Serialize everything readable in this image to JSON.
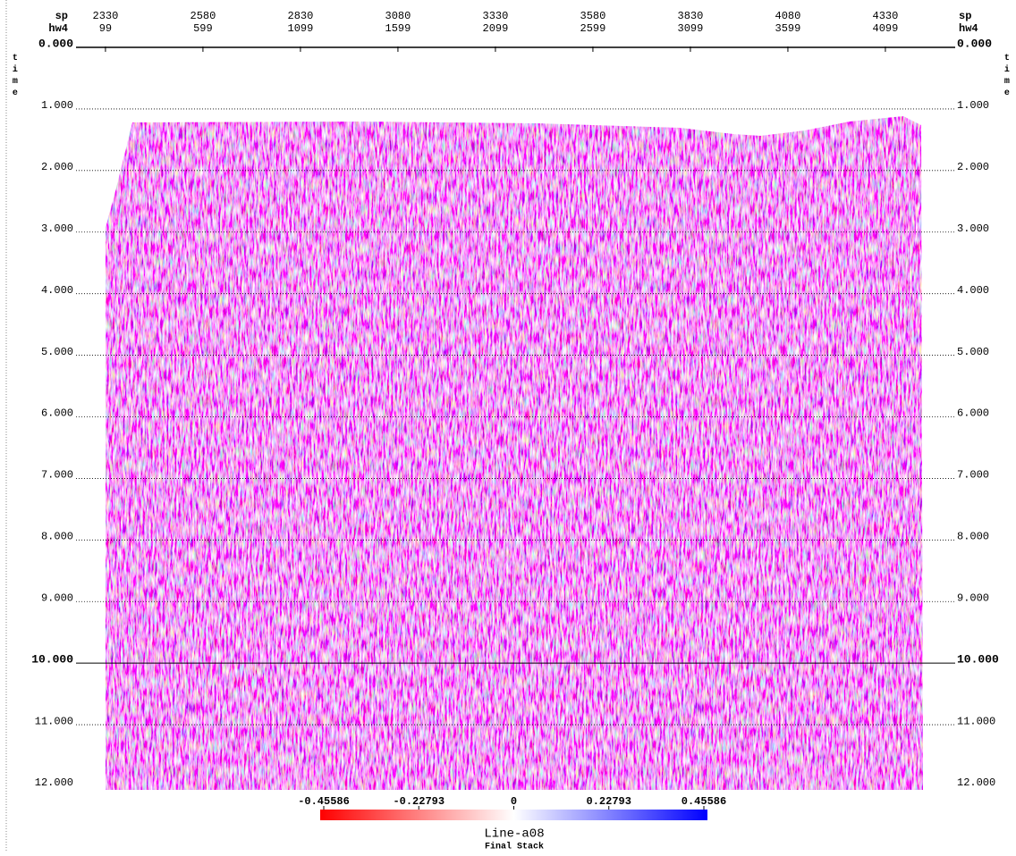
{
  "chart_data": {
    "type": "seismic",
    "title": "Line-a08",
    "subtitle": "Final Stack",
    "ylabel": "time",
    "x_axis_names": [
      "sp",
      "hw4"
    ],
    "xlim": [
      -52,
      4457
    ],
    "xticks": [
      99,
      599,
      1099,
      1599,
      2099,
      2599,
      3099,
      3599,
      4099
    ],
    "sp_ticks": [
      2330,
      2580,
      2830,
      3080,
      3330,
      3580,
      3830,
      4080,
      4330
    ],
    "ylim": [
      0,
      12
    ],
    "yticks": [
      {
        "value": 0,
        "label": "0.000"
      },
      {
        "value": 1,
        "label": "1.000"
      },
      {
        "value": 2,
        "label": "2.000"
      },
      {
        "value": 3,
        "label": "3.000"
      },
      {
        "value": 4,
        "label": "4.000"
      },
      {
        "value": 5,
        "label": "5.000"
      },
      {
        "value": 6,
        "label": "6.000"
      },
      {
        "value": 7,
        "label": "7.000"
      },
      {
        "value": 8,
        "label": "8.000"
      },
      {
        "value": 9,
        "label": "9.000"
      },
      {
        "value": 10,
        "label": "10.000"
      },
      {
        "value": 11,
        "label": "11.000"
      },
      {
        "value": 12,
        "label": "12.000"
      }
    ],
    "grid": true,
    "colorbar": {
      "lim": [
        -0.45586,
        0.45586
      ],
      "ticks": [
        -0.45586,
        -0.22793,
        0,
        0.22793,
        0.45586
      ],
      "colors": [
        "#ff0000",
        "#ffffff",
        "#0000ff"
      ]
    }
  }
}
